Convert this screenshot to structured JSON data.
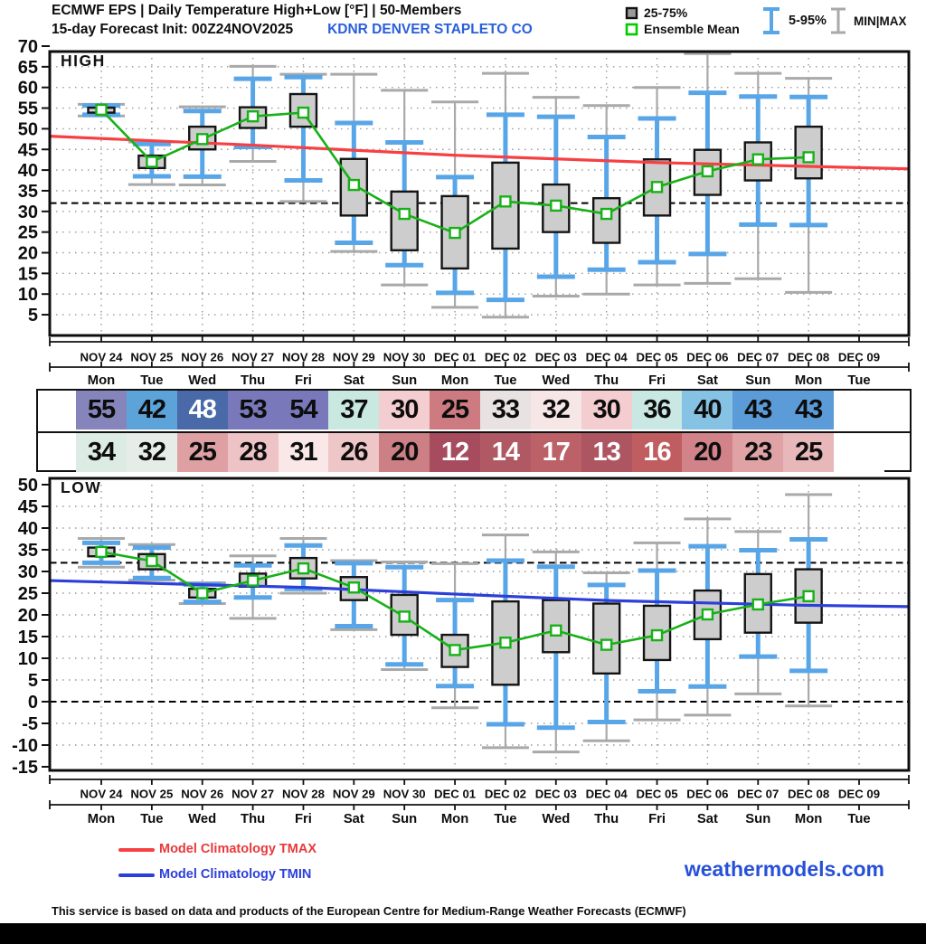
{
  "header": {
    "title": "ECMWF EPS | Daily Temperature High+Low [°F] | 50-Members",
    "subtitle": "15-day Forecast Init: 00Z24NOV2025",
    "station": "KDNR  DENVER STAPLETO CO",
    "legend": {
      "box_label": "25-75%",
      "mean_label": "Ensemble Mean",
      "p595_label": "5-95%",
      "minmax_label": "MIN|MAX"
    }
  },
  "days": [
    {
      "date": "NOV 24",
      "dow": "Mon"
    },
    {
      "date": "NOV 25",
      "dow": "Tue"
    },
    {
      "date": "NOV 26",
      "dow": "Wed"
    },
    {
      "date": "NOV 27",
      "dow": "Thu"
    },
    {
      "date": "NOV 28",
      "dow": "Fri"
    },
    {
      "date": "NOV 29",
      "dow": "Sat"
    },
    {
      "date": "NOV 30",
      "dow": "Sun"
    },
    {
      "date": "DEC 01",
      "dow": "Mon"
    },
    {
      "date": "DEC 02",
      "dow": "Tue"
    },
    {
      "date": "DEC 03",
      "dow": "Wed"
    },
    {
      "date": "DEC 04",
      "dow": "Thu"
    },
    {
      "date": "DEC 05",
      "dow": "Fri"
    },
    {
      "date": "DEC 06",
      "dow": "Sat"
    },
    {
      "date": "DEC 07",
      "dow": "Sun"
    },
    {
      "date": "DEC 08",
      "dow": "Mon"
    },
    {
      "date": "DEC 09",
      "dow": "Tue"
    }
  ],
  "chart_data": [
    {
      "type": "box-whisker",
      "title": "HIGH",
      "ylim": [
        0,
        70
      ],
      "ytick_step": 5,
      "ytick_labels": [
        70,
        65,
        60,
        55,
        50,
        45,
        40,
        35,
        30,
        25,
        20,
        15,
        10,
        5
      ],
      "grid_ticks": [
        65,
        60,
        55,
        50,
        45,
        40,
        35,
        30,
        25,
        20,
        15,
        10,
        5
      ],
      "ref_lines": [
        32
      ],
      "legend_position": "top-right",
      "climatology": {
        "label": "Model Climatology TMAX",
        "color": "#f64042",
        "points": [
          {
            "f": 0,
            "t": 48.2
          },
          {
            "f": 0.24,
            "t": 46.0
          },
          {
            "f": 0.47,
            "t": 43.6
          },
          {
            "f": 0.71,
            "t": 41.8
          },
          {
            "f": 1,
            "t": 40.3
          }
        ]
      },
      "box_format": [
        "min",
        "p5",
        "q1",
        "mean",
        "q3",
        "p95",
        "max"
      ],
      "boxes": [
        [
          53.1,
          53.4,
          53.9,
          54.6,
          55.1,
          55.6,
          55.9
        ],
        [
          36.5,
          38.5,
          40.5,
          42.0,
          43.5,
          46.3,
          46.8
        ],
        [
          36.4,
          38.4,
          45.0,
          47.5,
          50.5,
          54.3,
          55.3
        ],
        [
          42.1,
          45.6,
          50.2,
          53.0,
          55.2,
          62.1,
          65.1
        ],
        [
          32.4,
          37.5,
          50.5,
          53.9,
          58.4,
          62.5,
          63.2
        ],
        [
          20.3,
          22.4,
          29.0,
          36.4,
          42.7,
          51.4,
          63.2
        ],
        [
          12.2,
          17.0,
          20.6,
          29.4,
          34.8,
          46.7,
          59.3
        ],
        [
          6.8,
          10.3,
          16.2,
          24.8,
          33.7,
          38.3,
          56.5
        ],
        [
          4.4,
          8.6,
          21.0,
          32.4,
          41.8,
          53.4,
          63.4
        ],
        [
          9.5,
          14.2,
          25.0,
          31.4,
          36.5,
          52.9,
          57.6
        ],
        [
          10.0,
          15.9,
          22.4,
          29.4,
          33.2,
          48.0,
          55.6
        ],
        [
          12.2,
          17.7,
          29.0,
          35.9,
          42.6,
          52.5,
          60.0
        ],
        [
          12.6,
          19.7,
          34.0,
          39.7,
          44.9,
          58.7,
          68.2
        ],
        [
          13.7,
          26.8,
          37.5,
          42.6,
          46.7,
          57.8,
          63.4
        ],
        [
          10.4,
          26.7,
          38.0,
          43.1,
          50.5,
          57.7,
          62.2
        ],
        null
      ]
    },
    {
      "type": "box-whisker",
      "title": "LOW",
      "ylim": [
        -17,
        50
      ],
      "ytick_step": 5,
      "ytick_labels": [
        50,
        45,
        40,
        35,
        30,
        25,
        20,
        15,
        10,
        5,
        0,
        -5,
        -10,
        -15
      ],
      "grid_ticks": [
        45,
        40,
        35,
        30,
        25,
        20,
        15,
        10,
        5,
        -5,
        -10
      ],
      "ref_lines": [
        32,
        0
      ],
      "climatology": {
        "label": "Model Climatology TMIN",
        "color": "#2c3fd8",
        "points": [
          {
            "f": 0,
            "t": 27.9
          },
          {
            "f": 0.3,
            "t": 26.3
          },
          {
            "f": 0.47,
            "t": 24.8
          },
          {
            "f": 0.65,
            "t": 23.3
          },
          {
            "f": 0.88,
            "t": 22.2
          },
          {
            "f": 1,
            "t": 21.9
          }
        ]
      },
      "box_format": [
        "min",
        "p5",
        "q1",
        "mean",
        "q3",
        "p95",
        "max"
      ],
      "boxes": [
        [
          31.0,
          32.0,
          33.5,
          34.5,
          35.5,
          36.6,
          37.6
        ],
        [
          28.0,
          28.5,
          30.5,
          32.4,
          34.0,
          35.5,
          36.2
        ],
        [
          22.6,
          23.0,
          24.0,
          25.0,
          26.0,
          27.0,
          27.4
        ],
        [
          19.2,
          24.0,
          26.5,
          27.9,
          29.5,
          31.4,
          33.6
        ],
        [
          25.0,
          26.0,
          28.4,
          30.7,
          33.1,
          36.0,
          37.6
        ],
        [
          16.6,
          17.4,
          23.4,
          26.3,
          28.7,
          31.9,
          32.5
        ],
        [
          7.4,
          8.6,
          15.4,
          19.6,
          24.6,
          31.0,
          32.2
        ],
        [
          -1.4,
          3.6,
          8.0,
          11.9,
          15.4,
          23.4,
          31.8
        ],
        [
          -10.6,
          -5.2,
          3.9,
          13.6,
          23.1,
          32.5,
          38.4
        ],
        [
          -11.6,
          -6.0,
          11.4,
          16.4,
          23.4,
          31.1,
          34.5
        ],
        [
          -9.0,
          -4.7,
          6.5,
          13.1,
          22.6,
          26.9,
          29.7
        ],
        [
          -4.2,
          2.4,
          9.6,
          15.3,
          22.1,
          30.2,
          36.6
        ],
        [
          -3.1,
          3.5,
          14.4,
          20.1,
          25.6,
          35.8,
          42.1
        ],
        [
          1.8,
          10.4,
          15.9,
          22.4,
          29.4,
          34.9,
          39.2
        ],
        [
          -1.0,
          7.1,
          18.2,
          24.3,
          30.5,
          37.4,
          47.7
        ],
        null
      ]
    }
  ],
  "table": {
    "high": {
      "values": [
        "55",
        "42",
        "48",
        "53",
        "54",
        "37",
        "30",
        "25",
        "33",
        "32",
        "30",
        "36",
        "40",
        "43",
        "43",
        ""
      ],
      "bg": [
        "#8585bb",
        "#5ba3d9",
        "#4a69a8",
        "#7878bb",
        "#7878bb",
        "#c8e8e0",
        "#f4cdd0",
        "#cd7b80",
        "#e9e2e3",
        "#f7e6e6",
        "#f4cdd0",
        "#c9e8e3",
        "#85c2e3",
        "#5b9bd8",
        "#5b9bd8",
        "#ffffff"
      ],
      "fg": [
        "#0d0d0d",
        "#0d0d0d",
        "#ffffff",
        "#0d0d0d",
        "#0d0d0d",
        "#0d0d0d",
        "#0d0d0d",
        "#0d0d0d",
        "#0d0d0d",
        "#0d0d0d",
        "#0d0d0d",
        "#0d0d0d",
        "#0d0d0d",
        "#0d0d0d",
        "#0d0d0d",
        "#0d0d0d"
      ]
    },
    "low": {
      "values": [
        "34",
        "32",
        "25",
        "28",
        "31",
        "26",
        "20",
        "12",
        "14",
        "17",
        "13",
        "16",
        "20",
        "23",
        "25",
        ""
      ],
      "bg": [
        "#dcebe4",
        "#e6ede8",
        "#dfa0a4",
        "#eec3c6",
        "#fae7e7",
        "#efc6c8",
        "#cc7f84",
        "#a64c5e",
        "#b05965",
        "#bc6168",
        "#ad5662",
        "#c05d60",
        "#d18389",
        "#dfa3a6",
        "#e8b7ba",
        "#ffffff"
      ],
      "fg": [
        "#0d0d0d",
        "#0d0d0d",
        "#0d0d0d",
        "#0d0d0d",
        "#0d0d0d",
        "#0d0d0d",
        "#0d0d0d",
        "#ffffff",
        "#ffffff",
        "#ffffff",
        "#ffffff",
        "#ffffff",
        "#0d0d0d",
        "#0d0d0d",
        "#0d0d0d",
        "#0d0d0d"
      ]
    }
  },
  "branding": {
    "site": "weathermodels.com"
  },
  "footer": {
    "note": "This service is based on data and products of the European Centre for Medium-Range Weather Forecasts (ECMWF)"
  },
  "colors": {
    "station_blue": "#2a5fdb",
    "brand_blue": "#2750d8",
    "box_fill": "#cdcdcd",
    "box_stroke": "#141414",
    "whisker_blue": "#58a6e8",
    "whisker_gray": "#a9a9a9",
    "mean_green": "#17b117",
    "legend_green": "#00cc00",
    "grid": "#999999"
  }
}
